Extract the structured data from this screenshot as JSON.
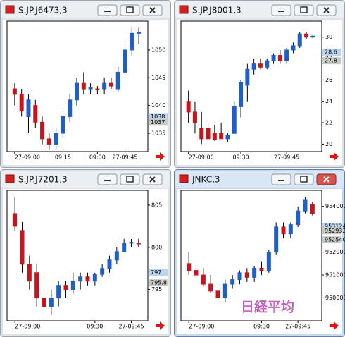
{
  "chart_data": [
    {
      "type": "candlestick",
      "title": "S.JP.J6473,3",
      "up_color": "#1f5fc8",
      "down_color": "#c8141c",
      "open": [
        1043,
        1042,
        1038,
        1040,
        1037,
        1034,
        1033,
        1035,
        1038,
        1041,
        1044,
        1043,
        1043,
        1043,
        1044,
        1043,
        1046,
        1050,
        1053
      ],
      "high": [
        1044,
        1043,
        1042,
        1041,
        1038,
        1035,
        1036,
        1039,
        1042,
        1045,
        1046,
        1044,
        1043.5,
        1045,
        1045,
        1047,
        1051,
        1054,
        1054
      ],
      "low": [
        1040,
        1038,
        1035,
        1036,
        1033,
        1032,
        1032,
        1034,
        1037,
        1040,
        1042,
        1042,
        1042,
        1042,
        1043,
        1042.5,
        1045,
        1049,
        1051
      ],
      "close": [
        1042,
        1039,
        1041,
        1037,
        1034,
        1033,
        1035,
        1038,
        1041,
        1044,
        1043,
        1043.2,
        1042.8,
        1044,
        1043.5,
        1046,
        1050,
        1053,
        1053.2
      ],
      "ylim": [
        1031.7,
        1055.2
      ],
      "yticks": [
        1050,
        1045,
        1040,
        1035
      ],
      "price_tags": [
        1038,
        1037
      ],
      "xticks": [
        {
          "value": 0,
          "label": "27-09:00"
        },
        {
          "value": 7,
          "label": "09:15"
        },
        {
          "value": 12,
          "label": "09:30"
        },
        {
          "value": 16,
          "label": "27-09:45"
        }
      ]
    },
    {
      "type": "candlestick",
      "title": "S.JP.J8001,3",
      "up_color": "#1f5fc8",
      "down_color": "#c8141c",
      "open": [
        24,
        23,
        21.5,
        21.5,
        21,
        21,
        20.5,
        21,
        23.5,
        25.5,
        27,
        27.5,
        27.2,
        27.8,
        28.3,
        27.8,
        28.8,
        29.2,
        30.3,
        30
      ],
      "high": [
        25,
        24,
        23,
        22,
        21.8,
        22,
        21,
        24,
        26,
        27.5,
        28,
        28,
        28,
        28.5,
        28.8,
        29,
        29.5,
        30.5,
        30.5,
        30.2
      ],
      "low": [
        22,
        21,
        20,
        20.5,
        20.3,
        20.5,
        20.2,
        21,
        22.5,
        24,
        26.5,
        27,
        27,
        27.5,
        27.5,
        27.5,
        28.5,
        29,
        29.8,
        29.8
      ],
      "close": [
        23,
        22,
        20.5,
        20.5,
        20.4,
        20.5,
        20.8,
        23.5,
        25.8,
        27,
        27.5,
        27.2,
        27.8,
        28.3,
        27.8,
        28.8,
        29.2,
        30.3,
        30,
        30.1
      ],
      "ylim": [
        19.3,
        31.5
      ],
      "yticks": [
        30,
        28,
        26,
        24,
        22,
        20
      ],
      "price_tags": [
        28.6,
        27.8
      ],
      "xticks": [
        {
          "value": 0,
          "label": "27-09:00"
        },
        {
          "value": 8,
          "label": "09:30"
        },
        {
          "value": 15,
          "label": "27-09:45"
        }
      ]
    },
    {
      "type": "candlestick",
      "title": "S.JP.J7201,3",
      "up_color": "#1f5fc8",
      "down_color": "#c8141c",
      "open": [
        804,
        802,
        798,
        797,
        794,
        793,
        794,
        795.5,
        795,
        796,
        796.5,
        796,
        796.8,
        797.5,
        798.5,
        799.5,
        800.5,
        800.5
      ],
      "high": [
        806,
        803,
        799,
        798,
        796,
        795,
        796,
        796,
        797,
        797,
        797,
        797,
        798,
        799,
        800,
        801,
        801,
        801
      ],
      "low": [
        802,
        797,
        795,
        793,
        792,
        792,
        793,
        794,
        794.5,
        795,
        795.5,
        795.5,
        796.5,
        797,
        798,
        799.5,
        800,
        800
      ],
      "close": [
        802.5,
        798,
        796,
        794,
        793,
        794,
        795.5,
        795,
        796,
        796.5,
        796,
        796.8,
        797.5,
        798.5,
        799.5,
        800.5,
        800.6,
        800.4
      ],
      "ylim": [
        791.3,
        806.75
      ],
      "yticks": [
        805,
        800,
        795
      ],
      "price_tags": [
        797,
        795.8
      ],
      "xticks": [
        {
          "value": 0,
          "label": "27-09:00"
        },
        {
          "value": 11,
          "label": "09:30"
        },
        {
          "value": 16,
          "label": "27-09:45"
        }
      ]
    },
    {
      "type": "candlestick",
      "title": "JNKC,3",
      "up_color": "#1f5fc8",
      "down_color": "#c8141c",
      "active": true,
      "watermark": "日経平均",
      "open": [
        951500,
        951200,
        951000,
        950600,
        950300,
        950000,
        950600,
        950800,
        951100,
        950900,
        951300,
        951200,
        952000,
        953100,
        952800,
        953200,
        953800,
        954100
      ],
      "high": [
        952000,
        951600,
        951300,
        951000,
        950600,
        950800,
        951000,
        951200,
        951300,
        951400,
        951600,
        952100,
        953300,
        953300,
        953300,
        954000,
        954400,
        954200
      ],
      "low": [
        951000,
        950800,
        950500,
        950200,
        949800,
        949800,
        950400,
        950600,
        950700,
        950700,
        951000,
        951100,
        951900,
        952600,
        952600,
        953100,
        953700,
        953600
      ],
      "close": [
        951200,
        951000,
        950600,
        950300,
        950000,
        950600,
        950800,
        951100,
        950900,
        951300,
        951200,
        952000,
        953100,
        952800,
        953200,
        953800,
        954300,
        953700
      ],
      "ylim": [
        949000,
        954700
      ],
      "yticks": [
        954000,
        952000,
        951000,
        950000
      ],
      "price_tags": [
        953124,
        952932,
        952540
      ],
      "xticks": [
        {
          "value": 0,
          "label": "27-09:00"
        },
        {
          "value": 10,
          "label": "09:30"
        },
        {
          "value": 15,
          "label": "27-09:45"
        }
      ]
    }
  ]
}
